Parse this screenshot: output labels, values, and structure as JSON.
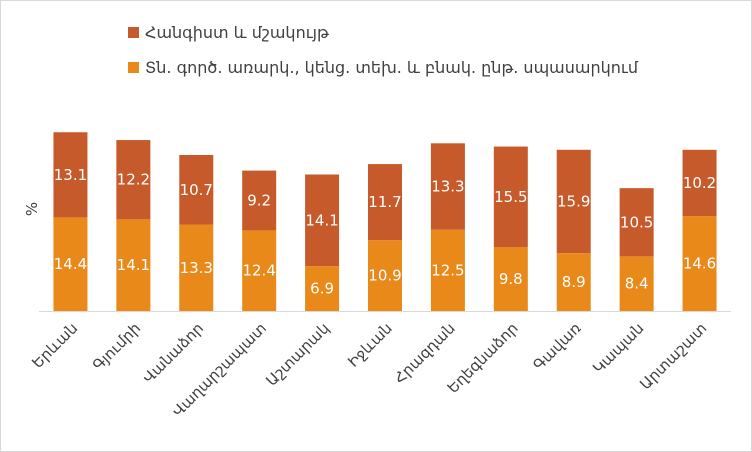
{
  "chart_data": {
    "type": "bar",
    "stacked": true,
    "ylabel": "%",
    "categories": [
      "Երևան",
      "Գյումրի",
      "Վանաձոր",
      "Վաղարշապատ",
      "Աշտարակ",
      "Իջևան",
      "Հրազդան",
      "Եղեգնաձոր",
      "Գավառ",
      "Կապան",
      "Արտաշատ"
    ],
    "series": [
      {
        "name": "Տն. գործ. առարկ., կենց. տեխ. և բնակ. ընթ. սպասարկում",
        "color": "#E8891A",
        "values": [
          14.4,
          14.1,
          13.3,
          12.4,
          6.9,
          10.9,
          12.5,
          9.8,
          8.9,
          8.4,
          14.6
        ]
      },
      {
        "name": "Հանգիստ և մշակույթ",
        "color": "#C65A2A",
        "values": [
          13.1,
          12.2,
          10.7,
          9.2,
          14.1,
          11.7,
          13.3,
          15.5,
          15.9,
          10.5,
          10.2
        ]
      }
    ],
    "ylim": [
      0,
      30
    ],
    "grid": false,
    "legend": "top-left"
  }
}
